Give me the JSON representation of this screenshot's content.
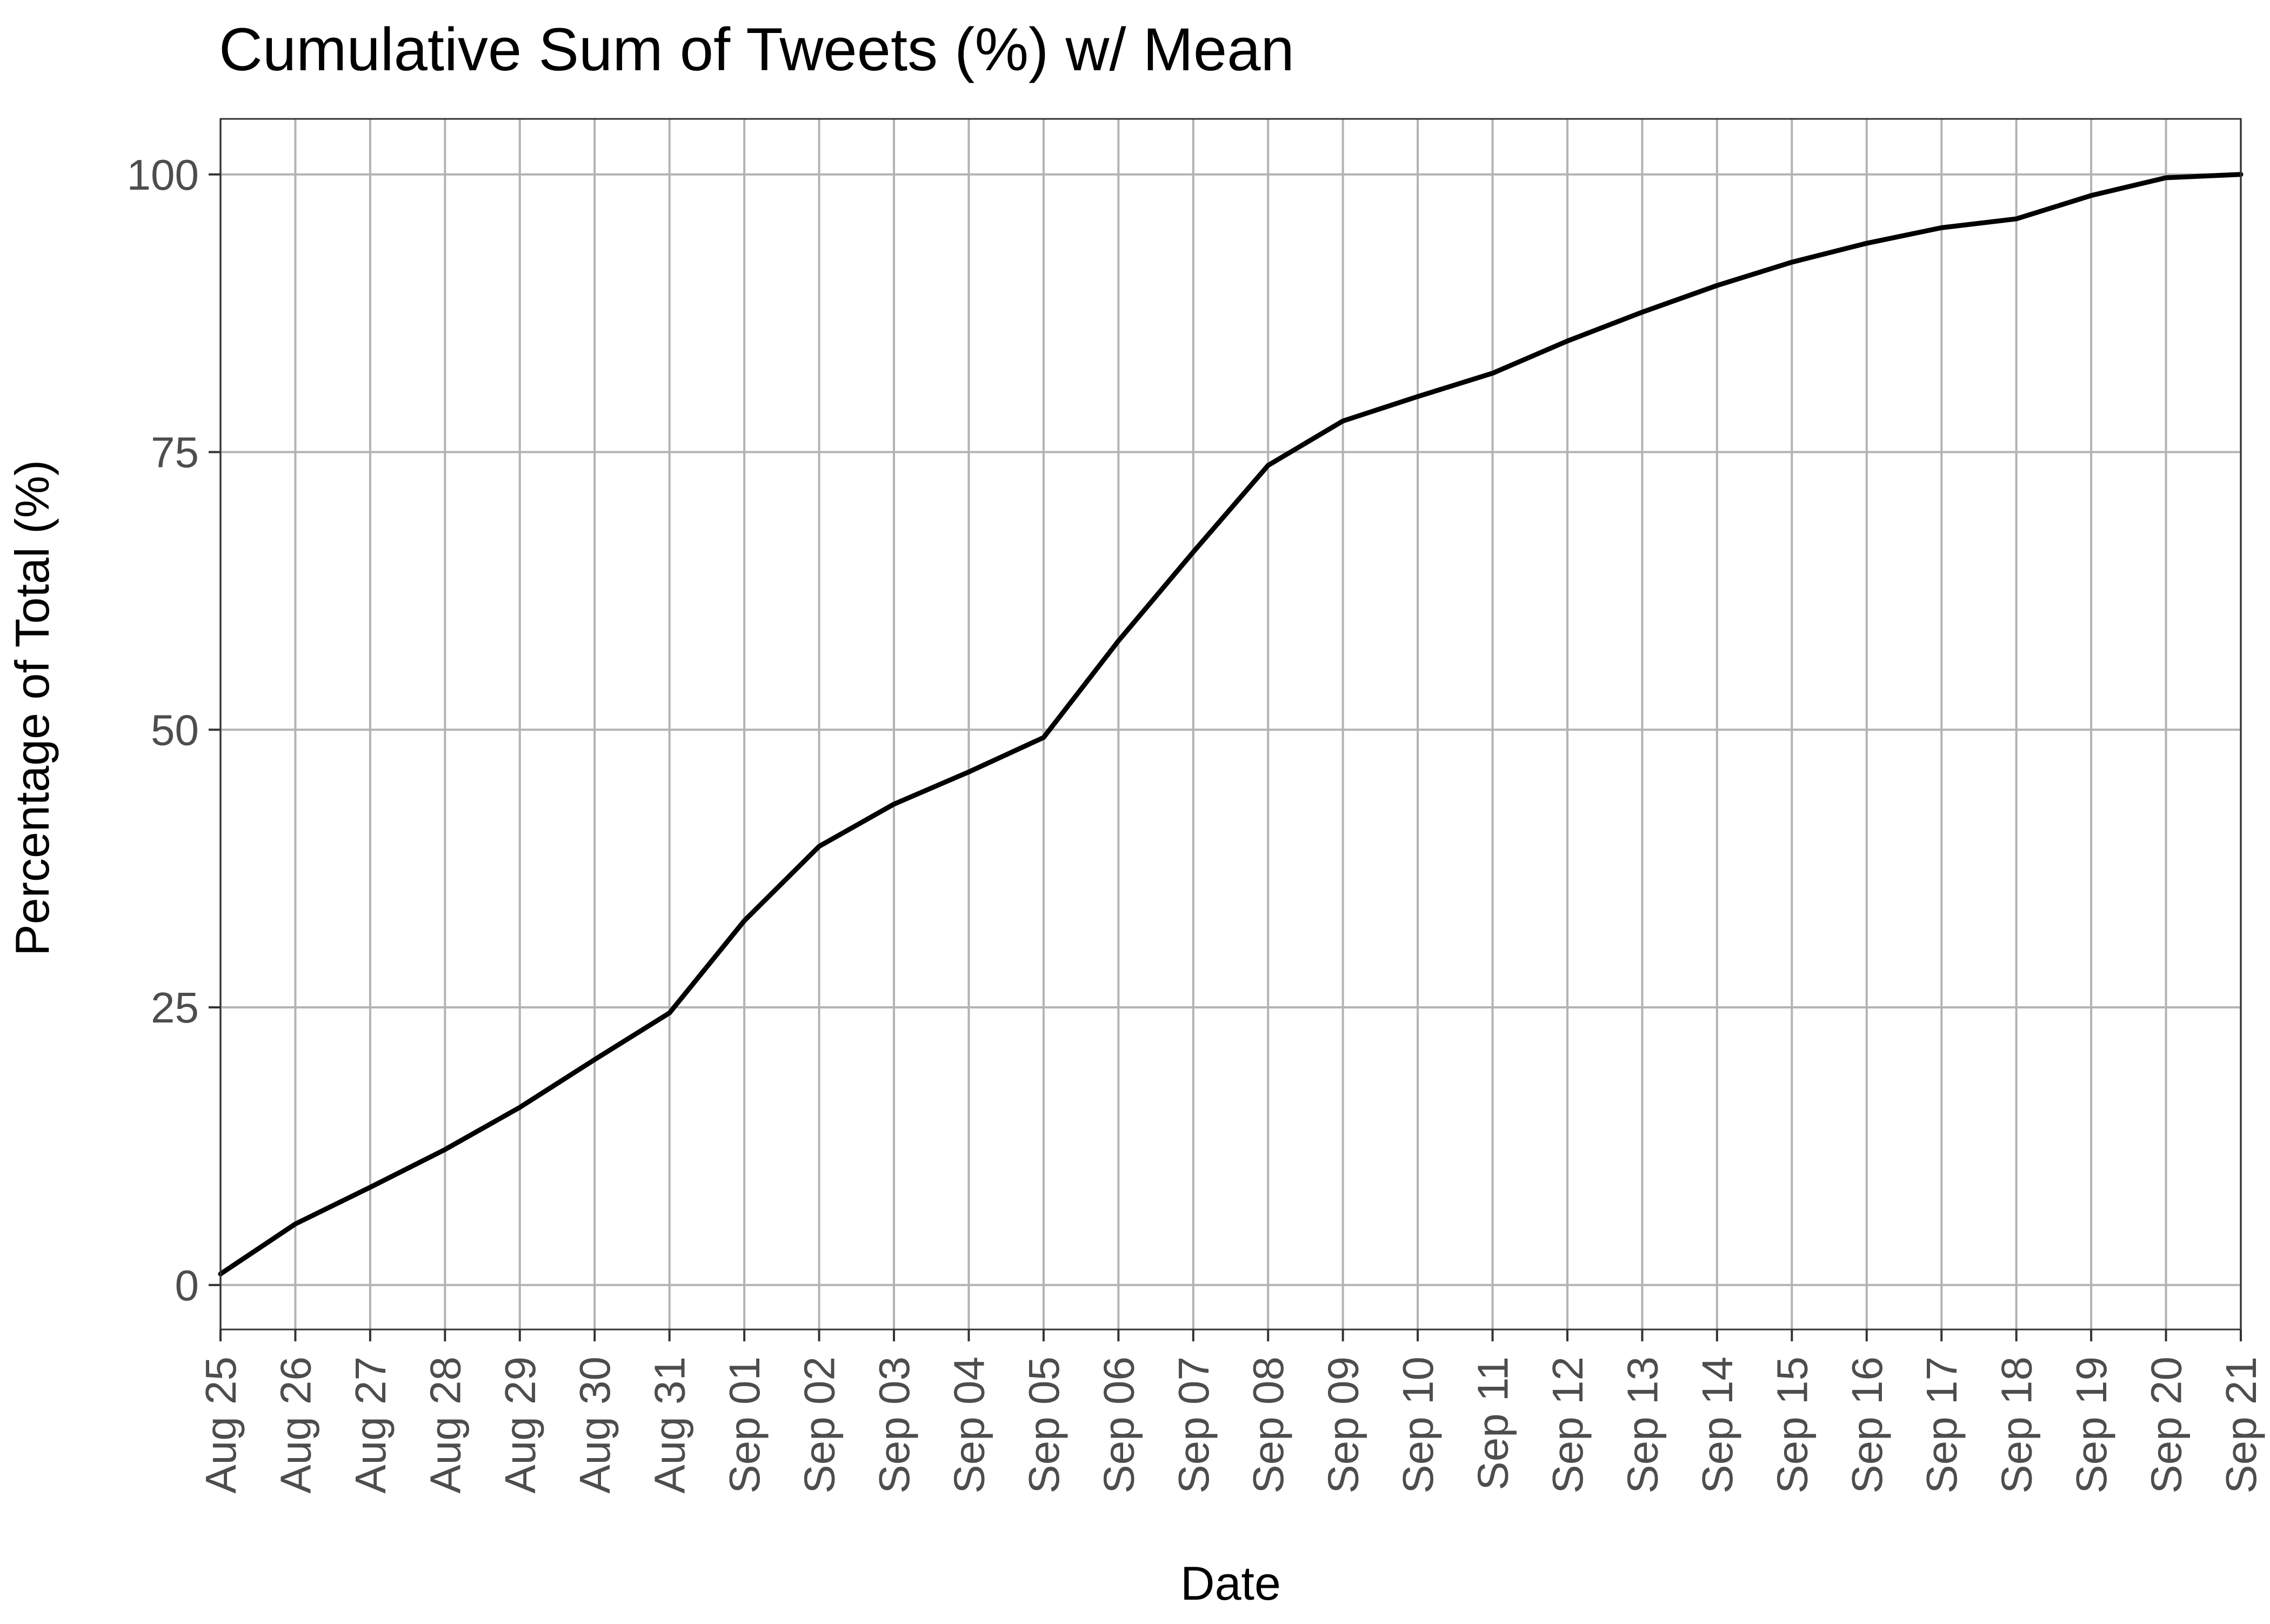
{
  "chart_data": {
    "type": "line",
    "title": "Cumulative Sum of Tweets (%) w/ Mean",
    "xlabel": "Date",
    "ylabel": "Percentage of Total (%)",
    "x_tick_labels": [
      "Aug 25",
      "Aug 26",
      "Aug 27",
      "Aug 28",
      "Aug 29",
      "Aug 30",
      "Aug 31",
      "Sep 01",
      "Sep 02",
      "Sep 03",
      "Sep 04",
      "Sep 05",
      "Sep 06",
      "Sep 07",
      "Sep 08",
      "Sep 09",
      "Sep 10",
      "Sep 11",
      "Sep 12",
      "Sep 13",
      "Sep 14",
      "Sep 15",
      "Sep 16",
      "Sep 17",
      "Sep 18",
      "Sep 19",
      "Sep 20",
      "Sep 21"
    ],
    "y_ticks": [
      0,
      25,
      50,
      75,
      100
    ],
    "ylim": [
      -4,
      105
    ],
    "grid": true,
    "legend": "none",
    "line_color": "#000000",
    "grid_color": "#b3b3b3",
    "series": [
      {
        "x": [
          "Aug 25",
          "Aug 26",
          "Aug 27",
          "Aug 28",
          "Aug 29",
          "Aug 30",
          "Aug 31",
          "Sep 01",
          "Sep 02",
          "Sep 03",
          "Sep 04",
          "Sep 05",
          "Sep 06",
          "Sep 07",
          "Sep 08",
          "Sep 09",
          "Sep 10",
          "Sep 11",
          "Sep 12",
          "Sep 13",
          "Sep 14",
          "Sep 15",
          "Sep 16",
          "Sep 17",
          "Sep 18",
          "Sep 19",
          "Sep 20",
          "Sep 21"
        ],
        "values": [
          1.0,
          5.5,
          8.8,
          12.2,
          16.0,
          20.3,
          24.5,
          32.8,
          39.5,
          43.3,
          46.2,
          49.3,
          58.0,
          66.0,
          73.8,
          77.8,
          80.0,
          82.1,
          85.0,
          87.6,
          90.0,
          92.1,
          93.8,
          95.2,
          96.0,
          98.1,
          99.7,
          100.0
        ]
      }
    ]
  }
}
